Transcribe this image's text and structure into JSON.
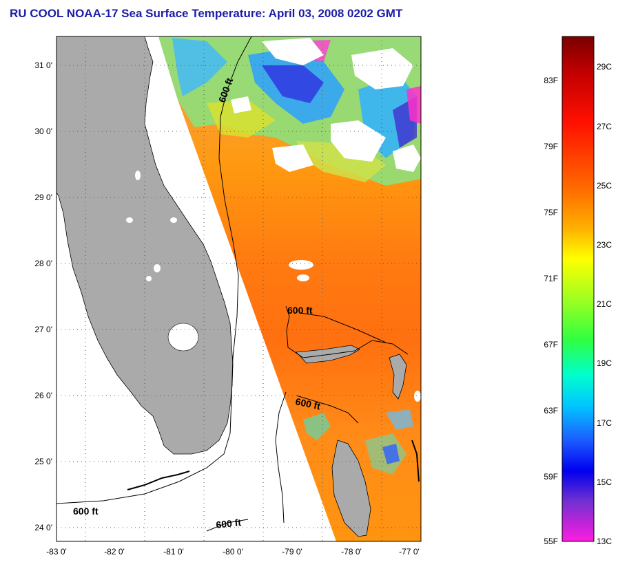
{
  "title": "RU COOL  NOAA-17  Sea Surface Temperature:  April 03, 2008 0202 GMT",
  "map": {
    "lon_labels": [
      "-83 0'",
      "-82 0'",
      "-81 0'",
      "-80 0'",
      "-79 0'",
      "-78 0'",
      "-77 0'"
    ],
    "lat_labels": [
      "31 0'",
      "30 0'",
      "29 0'",
      "28 0'",
      "27 0'",
      "26 0'",
      "25 0'",
      "24 0'"
    ],
    "contour_label": "600 ft",
    "colors": {
      "land": "#aaaaaa",
      "no_data": "#ffffff",
      "coast": "#000000"
    }
  },
  "colorbar": {
    "fahrenheit_labels": [
      "83F",
      "79F",
      "75F",
      "71F",
      "67F",
      "63F",
      "59F",
      "55F"
    ],
    "celsius_labels": [
      "29C",
      "27C",
      "25C",
      "23C",
      "21C",
      "19C",
      "17C",
      "15C",
      "13C"
    ]
  }
}
